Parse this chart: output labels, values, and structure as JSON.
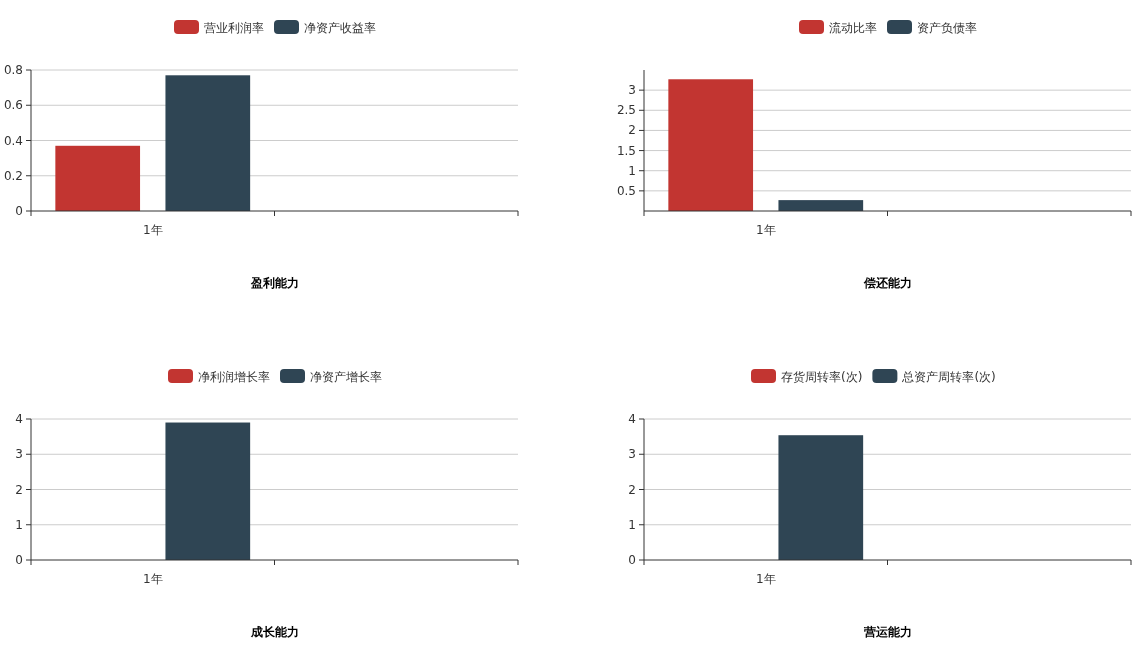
{
  "chart_data": [
    {
      "type": "bar",
      "title": "盈利能力",
      "categories": [
        "1年",
        null
      ],
      "ylim": [
        0,
        0.8
      ],
      "yticks": [
        0,
        0.2,
        0.4,
        0.6,
        0.8
      ],
      "grid": "y",
      "legend": "top",
      "series": [
        {
          "name": "营业利润率",
          "color": "#c23531",
          "values": [
            0.37,
            null
          ]
        },
        {
          "name": "净资产收益率",
          "color": "#2f4554",
          "values": [
            0.77,
            null
          ]
        }
      ]
    },
    {
      "type": "bar",
      "title": "偿还能力",
      "categories": [
        "1年",
        null
      ],
      "ylim": [
        0,
        3.5
      ],
      "yticks": [
        0.5,
        1,
        1.5,
        2,
        2.5,
        3
      ],
      "grid": "y",
      "legend": "top",
      "series": [
        {
          "name": "流动比率",
          "color": "#c23531",
          "values": [
            3.27,
            null
          ]
        },
        {
          "name": "资产负债率",
          "color": "#2f4554",
          "values": [
            0.27,
            null
          ]
        }
      ]
    },
    {
      "type": "bar",
      "title": "成长能力",
      "categories": [
        "1年",
        null
      ],
      "ylim": [
        0,
        4
      ],
      "yticks": [
        0,
        1,
        2,
        3,
        4
      ],
      "grid": "y",
      "legend": "top",
      "series": [
        {
          "name": "净利润增长率",
          "color": "#c23531",
          "values": [
            null,
            null
          ]
        },
        {
          "name": "净资产增长率",
          "color": "#2f4554",
          "values": [
            3.9,
            null
          ]
        }
      ]
    },
    {
      "type": "bar",
      "title": "营运能力",
      "categories": [
        "1年",
        null
      ],
      "ylim": [
        0,
        4
      ],
      "yticks": [
        0,
        1,
        2,
        3,
        4
      ],
      "grid": "y",
      "legend": "top",
      "series": [
        {
          "name": "存货周转率(次)",
          "color": "#c23531",
          "values": [
            null,
            null
          ]
        },
        {
          "name": "总资产周转率(次)",
          "color": "#2f4554",
          "values": [
            3.54,
            null
          ]
        }
      ]
    }
  ]
}
